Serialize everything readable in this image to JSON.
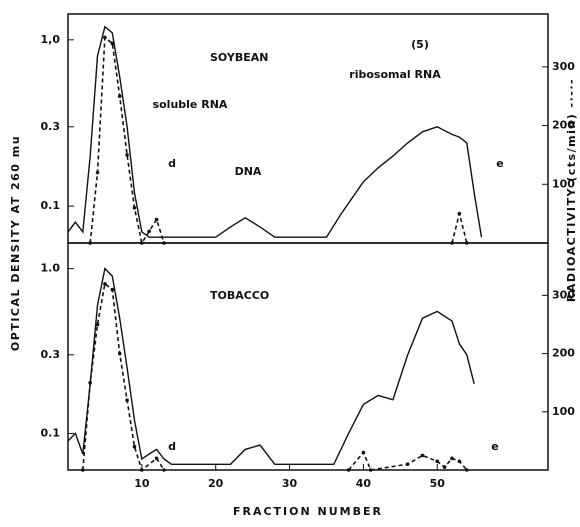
{
  "chart_data": [
    {
      "type": "line",
      "title": "SOYBEAN",
      "y_label": "OPTICAL DENSITY AT 260 mu",
      "y2_label": "RADIOACTIVITY  (cts/min) -·-·-",
      "annotations": [
        "(5)",
        "soluble RNA",
        "ribosomal RNA",
        "d",
        "DNA",
        "e"
      ],
      "xlim": [
        0,
        65
      ],
      "yscale": "log",
      "ylim": [
        0.06,
        1.43
      ],
      "yticks": [
        {
          "value": 1.0,
          "label": "1,0"
        },
        0.3,
        0.1
      ],
      "y2lim": [
        0,
        390
      ],
      "y2ticks": [
        100,
        200,
        300
      ],
      "series": [
        {
          "style": "solid",
          "color": "#111111",
          "x": [
            0,
            1,
            2,
            3,
            4,
            5,
            6,
            7,
            8,
            9,
            10,
            11,
            20,
            22,
            24,
            26,
            28,
            35,
            37,
            40,
            42,
            44,
            46,
            48,
            50,
            52,
            53,
            54,
            55,
            56
          ],
          "values": [
            0.07,
            0.08,
            0.07,
            0.2,
            0.8,
            1.2,
            1.1,
            0.6,
            0.3,
            0.12,
            0.07,
            0.065,
            0.065,
            0.075,
            0.085,
            0.075,
            0.065,
            0.065,
            0.09,
            0.14,
            0.17,
            0.2,
            0.24,
            0.28,
            0.3,
            0.27,
            0.26,
            0.24,
            0.12,
            0.065
          ]
        },
        {
          "style": "dashed",
          "axis": "y2",
          "color": "#111111",
          "x": [
            3,
            4,
            5,
            6,
            7,
            8,
            9,
            10,
            11,
            12,
            13,
            null,
            52,
            53,
            54
          ],
          "values": [
            0,
            120,
            350,
            340,
            250,
            150,
            60,
            0,
            20,
            40,
            0,
            null,
            0,
            50,
            0
          ]
        }
      ]
    },
    {
      "type": "line",
      "title": "TOBACCO",
      "x_label": "FRACTION NUMBER",
      "annotations": [
        "d",
        "e"
      ],
      "xlim": [
        0,
        65
      ],
      "xticks": [
        10,
        20,
        30,
        40,
        50
      ],
      "yscale": "log",
      "ylim": [
        0.06,
        1.43
      ],
      "yticks": [
        {
          "value": 1.0,
          "label": "1.0"
        },
        0.3,
        0.1
      ],
      "y2lim": [
        0,
        390
      ],
      "y2ticks": [
        100,
        200,
        300
      ],
      "series": [
        {
          "style": "solid",
          "color": "#111111",
          "x": [
            0,
            1,
            2,
            3,
            4,
            5,
            6,
            7,
            8,
            9,
            10,
            11,
            12,
            13,
            14,
            22,
            24,
            26,
            28,
            36,
            38,
            40,
            42,
            44,
            46,
            48,
            50,
            52,
            53,
            54,
            55
          ],
          "values": [
            0.09,
            0.1,
            0.075,
            0.2,
            0.6,
            1.0,
            0.9,
            0.5,
            0.25,
            0.12,
            0.07,
            0.075,
            0.08,
            0.07,
            0.065,
            0.065,
            0.08,
            0.085,
            0.065,
            0.065,
            0.1,
            0.15,
            0.17,
            0.16,
            0.3,
            0.5,
            0.55,
            0.48,
            0.35,
            0.3,
            0.2
          ]
        },
        {
          "style": "dashed",
          "axis": "y2",
          "color": "#111111",
          "x": [
            2,
            3,
            4,
            5,
            6,
            7,
            8,
            9,
            10,
            12,
            13,
            null,
            38,
            40,
            41,
            46,
            48,
            50,
            51,
            52,
            53,
            54
          ],
          "values": [
            0,
            150,
            250,
            320,
            310,
            200,
            120,
            40,
            0,
            20,
            0,
            null,
            0,
            30,
            0,
            10,
            25,
            15,
            5,
            20,
            15,
            0
          ]
        }
      ]
    }
  ]
}
